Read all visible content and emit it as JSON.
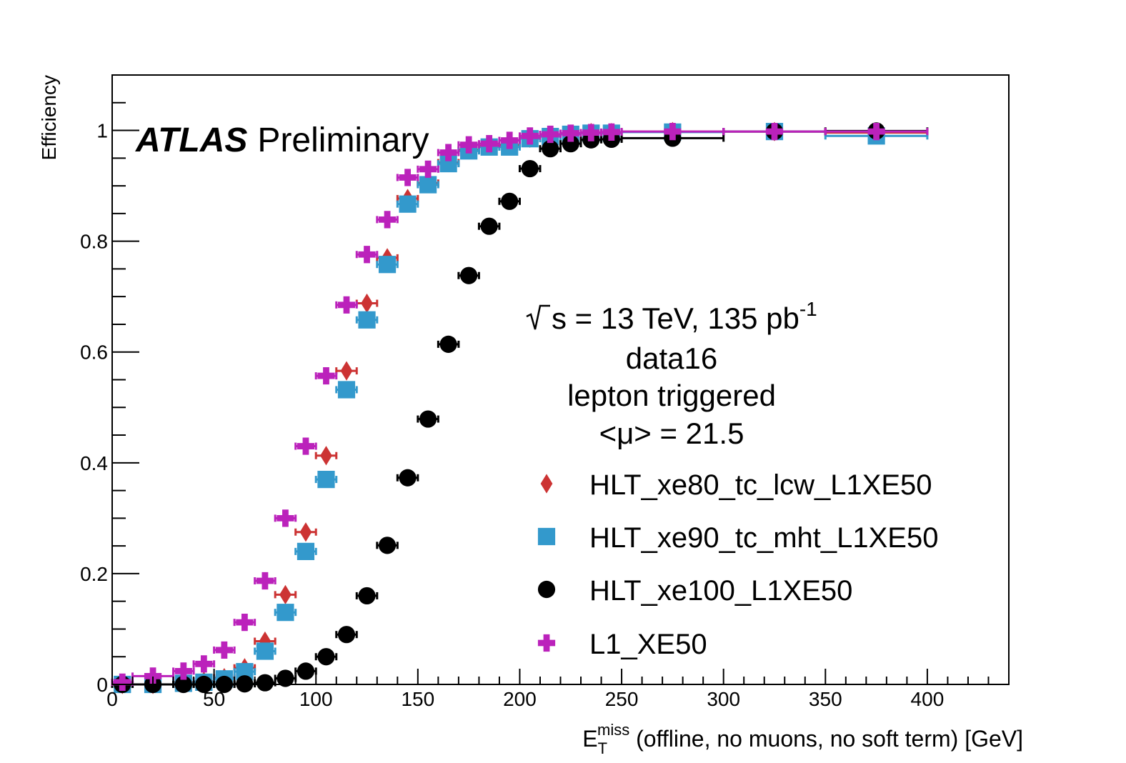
{
  "chart_data": {
    "type": "scatter",
    "xlabel_main": "E",
    "xlabel_sub": "T",
    "xlabel_sup": "miss",
    "xlabel_rest": " (offline, no muons, no soft term) [GeV]",
    "ylabel": "Efficiency",
    "xlim": [
      0,
      440
    ],
    "ylim": [
      0,
      1.1
    ],
    "grid": false,
    "legend_position": "right-center",
    "xticks": [
      "0",
      "50",
      "100",
      "150",
      "200",
      "250",
      "300",
      "350",
      "400"
    ],
    "yticks": [
      "0",
      "0.2",
      "0.4",
      "0.6",
      "0.8",
      "1"
    ],
    "atlas_label": "ATLAS",
    "preliminary_label": "Preliminary",
    "annotations": {
      "energy_main": "s = 13 TeV, 135 pb",
      "energy_sup": "-1",
      "dataset": "data16",
      "trigger": "lepton triggered",
      "pileup": "<μ> = 21.5"
    },
    "series": [
      {
        "name": "HLT_xe80_tc_lcw_L1XE50",
        "marker": "diamond",
        "color": "#cc3333",
        "points": [
          [
            5,
            0.0,
            5
          ],
          [
            20,
            0.0,
            10
          ],
          [
            35,
            0.003,
            5
          ],
          [
            45,
            0.006,
            5
          ],
          [
            55,
            0.012,
            5
          ],
          [
            65,
            0.03,
            5
          ],
          [
            75,
            0.078,
            5
          ],
          [
            85,
            0.162,
            5
          ],
          [
            95,
            0.275,
            5
          ],
          [
            105,
            0.413,
            5
          ],
          [
            115,
            0.566,
            5
          ],
          [
            125,
            0.688,
            5
          ],
          [
            135,
            0.77,
            5
          ],
          [
            145,
            0.877,
            5
          ],
          [
            155,
            0.905,
            5
          ],
          [
            165,
            0.942,
            5
          ],
          [
            175,
            0.965,
            5
          ],
          [
            185,
            0.972,
            5
          ],
          [
            195,
            0.974,
            5
          ],
          [
            205,
            0.986,
            5
          ],
          [
            215,
            0.99,
            5
          ],
          [
            225,
            0.993,
            5
          ],
          [
            235,
            0.996,
            5
          ],
          [
            245,
            0.996,
            5
          ],
          [
            275,
            0.998,
            25
          ],
          [
            325,
            0.998,
            25
          ],
          [
            375,
            0.996,
            25
          ]
        ]
      },
      {
        "name": "HLT_xe90_tc_mht_L1XE50",
        "marker": "square",
        "color": "#3399cc",
        "points": [
          [
            5,
            0.0,
            5
          ],
          [
            20,
            0.0,
            10
          ],
          [
            35,
            0.002,
            5
          ],
          [
            45,
            0.004,
            5
          ],
          [
            55,
            0.01,
            5
          ],
          [
            65,
            0.023,
            5
          ],
          [
            75,
            0.06,
            5
          ],
          [
            85,
            0.13,
            5
          ],
          [
            95,
            0.24,
            5
          ],
          [
            105,
            0.37,
            5
          ],
          [
            115,
            0.532,
            5
          ],
          [
            125,
            0.658,
            5
          ],
          [
            135,
            0.758,
            5
          ],
          [
            145,
            0.867,
            5
          ],
          [
            155,
            0.902,
            5
          ],
          [
            165,
            0.94,
            5
          ],
          [
            175,
            0.963,
            5
          ],
          [
            185,
            0.97,
            5
          ],
          [
            195,
            0.97,
            5
          ],
          [
            205,
            0.985,
            5
          ],
          [
            215,
            0.989,
            5
          ],
          [
            225,
            0.993,
            5
          ],
          [
            235,
            0.995,
            5
          ],
          [
            245,
            0.995,
            5
          ],
          [
            275,
            0.997,
            25
          ],
          [
            325,
            0.998,
            25
          ],
          [
            375,
            0.99,
            25
          ]
        ]
      },
      {
        "name": "HLT_xe100_L1XE50",
        "marker": "circle",
        "color": "#000000",
        "points": [
          [
            5,
            0.0,
            5
          ],
          [
            20,
            0.0,
            10
          ],
          [
            35,
            0.0,
            5
          ],
          [
            45,
            0.0,
            5
          ],
          [
            55,
            0.0,
            5
          ],
          [
            65,
            0.001,
            5
          ],
          [
            75,
            0.003,
            5
          ],
          [
            85,
            0.011,
            5
          ],
          [
            95,
            0.024,
            5
          ],
          [
            105,
            0.05,
            5
          ],
          [
            115,
            0.09,
            5
          ],
          [
            125,
            0.16,
            5
          ],
          [
            135,
            0.251,
            5
          ],
          [
            145,
            0.373,
            5
          ],
          [
            155,
            0.479,
            5
          ],
          [
            165,
            0.614,
            5
          ],
          [
            175,
            0.738,
            5
          ],
          [
            185,
            0.827,
            5
          ],
          [
            195,
            0.872,
            5
          ],
          [
            205,
            0.931,
            5
          ],
          [
            215,
            0.967,
            5
          ],
          [
            225,
            0.976,
            5
          ],
          [
            235,
            0.983,
            5
          ],
          [
            245,
            0.984,
            5
          ],
          [
            275,
            0.986,
            25
          ],
          [
            325,
            0.998,
            25
          ],
          [
            375,
            0.999,
            25
          ]
        ]
      },
      {
        "name": "L1_XE50",
        "marker": "cross",
        "color": "#bb22bb",
        "points": [
          [
            5,
            0.004,
            5
          ],
          [
            20,
            0.015,
            10
          ],
          [
            35,
            0.024,
            5
          ],
          [
            45,
            0.037,
            5
          ],
          [
            55,
            0.062,
            5
          ],
          [
            65,
            0.112,
            5
          ],
          [
            75,
            0.187,
            5
          ],
          [
            85,
            0.3,
            5
          ],
          [
            95,
            0.43,
            5
          ],
          [
            105,
            0.557,
            5
          ],
          [
            115,
            0.685,
            5
          ],
          [
            125,
            0.776,
            5
          ],
          [
            135,
            0.839,
            5
          ],
          [
            145,
            0.915,
            5
          ],
          [
            155,
            0.93,
            5
          ],
          [
            165,
            0.96,
            5
          ],
          [
            175,
            0.974,
            5
          ],
          [
            185,
            0.976,
            5
          ],
          [
            195,
            0.982,
            5
          ],
          [
            205,
            0.99,
            5
          ],
          [
            215,
            0.993,
            5
          ],
          [
            225,
            0.995,
            5
          ],
          [
            235,
            0.996,
            5
          ],
          [
            245,
            0.997,
            5
          ],
          [
            275,
            0.998,
            25
          ],
          [
            325,
            0.998,
            25
          ],
          [
            375,
            0.998,
            25
          ]
        ]
      }
    ]
  }
}
